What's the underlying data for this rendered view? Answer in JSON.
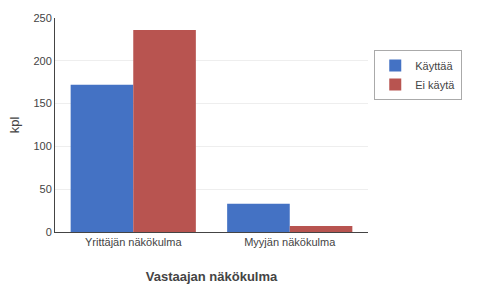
{
  "chart_data": {
    "type": "bar",
    "categories": [
      "Yrittäjän näkökulma",
      "Myyjän näkökulma"
    ],
    "series": [
      {
        "name": "Käyttää",
        "color": "#4472C4",
        "values": [
          172,
          33
        ]
      },
      {
        "name": "Ei käytä",
        "color": "#B85450",
        "values": [
          236,
          7
        ]
      }
    ],
    "xlabel": "Vastaajan näkökulma",
    "ylabel": "kpl",
    "ylim": [
      0,
      250
    ],
    "yticks": [
      0,
      50,
      100,
      150,
      200,
      250
    ],
    "grid": true,
    "legend": "right"
  }
}
